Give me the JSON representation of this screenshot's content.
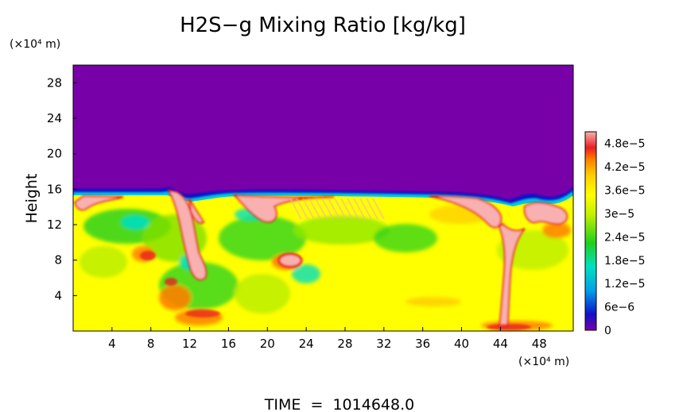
{
  "chart_data": {
    "type": "heatmap",
    "title": "H2S−g Mixing Ratio [kg/kg]",
    "ylabel": "Height",
    "y_unit": "(×10⁴ m)",
    "x_unit": "(×10⁴ m)",
    "xlim": [
      0,
      51.5
    ],
    "ylim": [
      0,
      30
    ],
    "x_ticks": [
      "4",
      "8",
      "12",
      "16",
      "20",
      "24",
      "28",
      "32",
      "36",
      "40",
      "44",
      "48"
    ],
    "x_tick_values": [
      4,
      8,
      12,
      16,
      20,
      24,
      28,
      32,
      36,
      40,
      44,
      48
    ],
    "y_ticks": [
      "4",
      "8",
      "12",
      "16",
      "20",
      "24",
      "28"
    ],
    "y_tick_values": [
      4,
      8,
      12,
      16,
      20,
      24,
      28
    ],
    "colorbar": {
      "labels": [
        "4.8e−5",
        "4.2e−5",
        "3.6e−5",
        "3e−5",
        "2.4e−5",
        "1.8e−5",
        "1.2e−5",
        "6e−6",
        "0"
      ],
      "values": [
        4.8e-05,
        4.2e-05,
        3.6e-05,
        3e-05,
        2.4e-05,
        1.8e-05,
        1.2e-05,
        6e-06,
        0
      ],
      "range": [
        0,
        5.1e-05
      ]
    },
    "colors": [
      "#7800a8",
      "#1010c8",
      "#00a0e8",
      "#00e0c0",
      "#20d020",
      "#c0f000",
      "#ffff00",
      "#ffd000",
      "#ff8000",
      "#e82020",
      "#f8b0b0"
    ],
    "cloud_top_height": 15.5,
    "background_value": 0,
    "footer": "TIME  =  1014648.0"
  }
}
